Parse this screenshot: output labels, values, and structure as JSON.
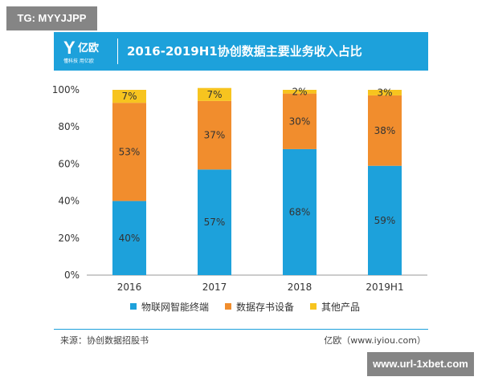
{
  "watermark_top": "TG: MYYJJPP",
  "watermark_bottom": "www.url-1xbet.com",
  "logo": {
    "name": "亿欧",
    "tagline": "懂科技 用亿欧"
  },
  "colors": {
    "header": "#1da1db",
    "series": [
      "#1da1db",
      "#f18d2d",
      "#f7c41f"
    ]
  },
  "chart_data": {
    "type": "bar",
    "stacked": true,
    "title": "2016-2019H1协创数据主要业务收入占比",
    "categories": [
      "2016",
      "2017",
      "2018",
      "2019H1"
    ],
    "series": [
      {
        "name": "物联网智能终端",
        "values": [
          40,
          57,
          68,
          59
        ]
      },
      {
        "name": "数据存书设备",
        "values": [
          53,
          37,
          30,
          38
        ]
      },
      {
        "name": "其他产品",
        "values": [
          7,
          7,
          2,
          3
        ]
      }
    ],
    "ylim": [
      0,
      100
    ],
    "yticks": [
      "0%",
      "20%",
      "40%",
      "60%",
      "80%",
      "100%"
    ],
    "value_suffix": "%",
    "grid": false,
    "legend": "bottom"
  },
  "footer": {
    "source": "来源：协创数据招股书",
    "credit": "亿欧（www.iyiou.com）"
  }
}
